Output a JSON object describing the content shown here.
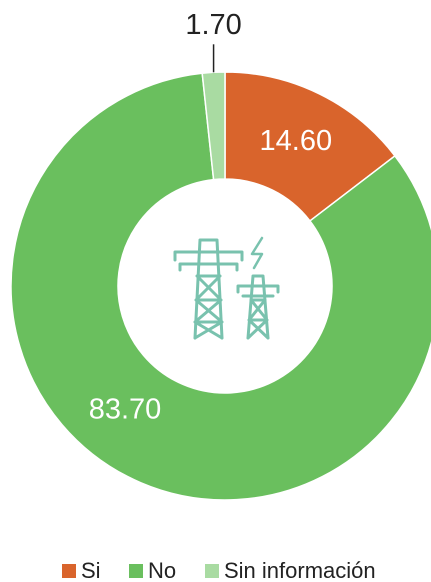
{
  "chart_data": {
    "type": "donut",
    "categories": [
      "Si",
      "No",
      "Sin información"
    ],
    "values": [
      14.6,
      83.7,
      1.7
    ],
    "value_labels": [
      "14.60",
      "83.70",
      "1.70"
    ],
    "colors": [
      "#d9642c",
      "#6abf5e",
      "#a9dba2"
    ],
    "legend": "bottom"
  }
}
